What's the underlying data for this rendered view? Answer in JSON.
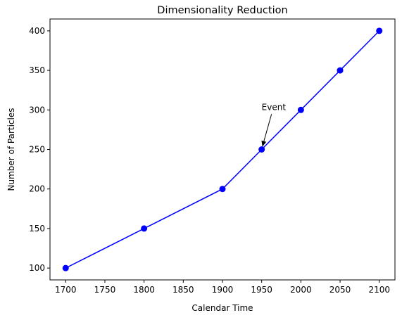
{
  "chart_data": {
    "type": "line",
    "title": "Dimensionality Reduction",
    "xlabel": "Calendar Time",
    "ylabel": "Number of Particles",
    "x": [
      1700,
      1800,
      1900,
      1950,
      2000,
      2050,
      2100
    ],
    "series": [
      {
        "values": [
          100,
          150,
          200,
          250,
          300,
          350,
          400
        ],
        "color": "#0000ff",
        "marker": "circle"
      }
    ],
    "xticks": [
      1700,
      1750,
      1800,
      1850,
      1900,
      1950,
      2000,
      2050,
      2100
    ],
    "yticks": [
      100,
      150,
      200,
      250,
      300,
      350,
      400
    ],
    "xlim": [
      1680,
      2120
    ],
    "ylim": [
      85,
      415
    ],
    "grid": false,
    "annotation": {
      "text": "Event",
      "point": [
        1950,
        250
      ],
      "text_position": [
        1950,
        300
      ]
    }
  }
}
